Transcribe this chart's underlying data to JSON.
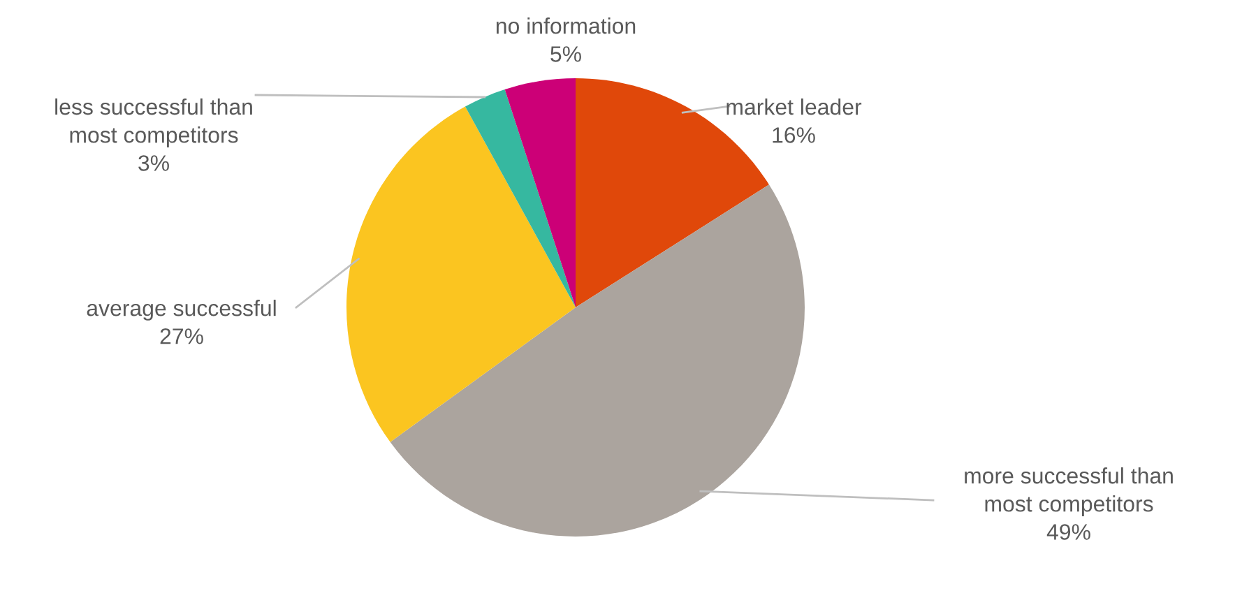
{
  "chart_data": {
    "type": "pie",
    "categories": [
      "market leader",
      "more successful than most competitors",
      "average successful",
      "less successful than most competitors",
      "no information"
    ],
    "values": [
      16,
      49,
      27,
      3,
      5
    ],
    "colors": [
      "#e0480a",
      "#aba49e",
      "#fbc520",
      "#36b8a0",
      "#cc0077"
    ],
    "value_labels": [
      "16%",
      "49%",
      "27%",
      "3%",
      "5%"
    ],
    "legend": false
  }
}
